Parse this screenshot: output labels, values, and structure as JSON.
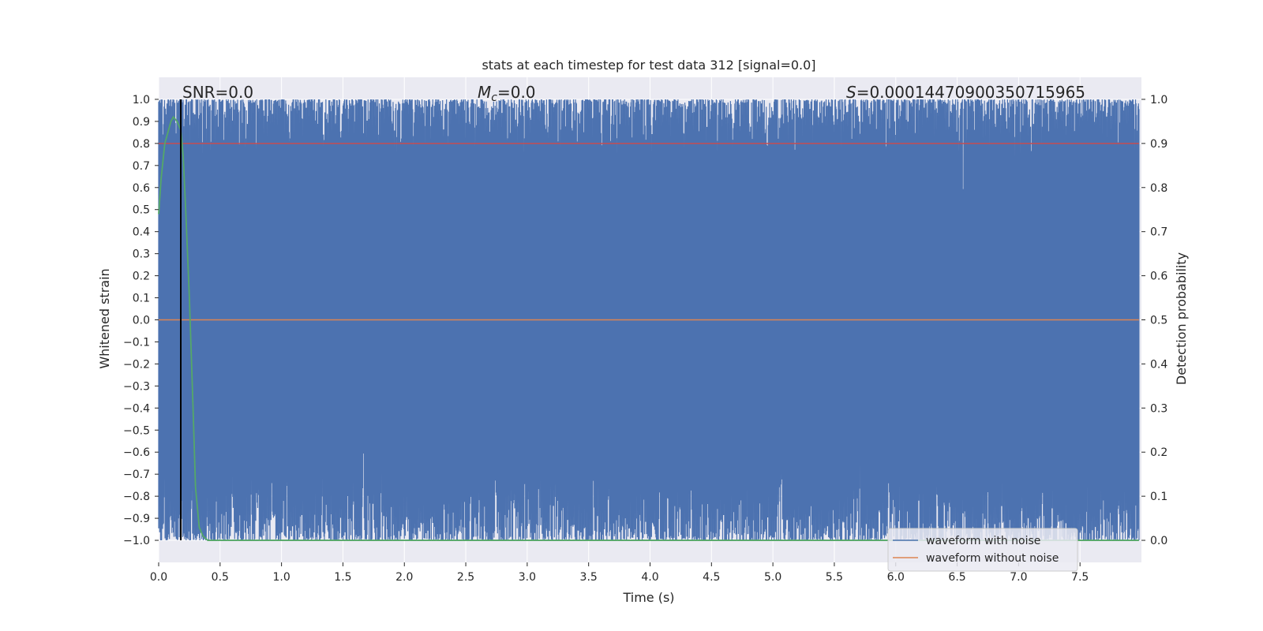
{
  "chart_data": {
    "type": "line",
    "title": "stats at each timestep for test data 312 [signal=0.0]",
    "xlabel": "Time (s)",
    "ylabel_left": "Whitened strain",
    "ylabel_right": "Detection probability",
    "xlim": [
      0.0,
      8.0
    ],
    "ylim_left": [
      -1.1,
      1.1
    ],
    "ylim_right": [
      -0.05,
      1.05
    ],
    "x_ticks": [
      "0.0",
      "0.5",
      "1.0",
      "1.5",
      "2.0",
      "2.5",
      "3.0",
      "3.5",
      "4.0",
      "4.5",
      "5.0",
      "5.5",
      "6.0",
      "6.5",
      "7.0",
      "7.5"
    ],
    "y_left_ticks": [
      "1.0",
      "0.9",
      "0.8",
      "0.7",
      "0.6",
      "0.5",
      "0.4",
      "0.3",
      "0.2",
      "0.1",
      "0.0",
      "−0.1",
      "−0.2",
      "−0.3",
      "−0.4",
      "−0.5",
      "−0.6",
      "−0.7",
      "−0.8",
      "−0.9",
      "−1.0"
    ],
    "y_right_ticks": [
      "1.0",
      "0.9",
      "0.8",
      "0.7",
      "0.6",
      "0.5",
      "0.4",
      "0.3",
      "0.2",
      "0.1",
      "0.0"
    ],
    "grid": true,
    "legend_position": "lower-right",
    "annotations": {
      "snr": "SNR=0.0",
      "mc_symbol": "M",
      "mc_sub": "c",
      "mc_value": "=0.0",
      "s_symbol": "S",
      "s_value": "=0.0001447090035071596​5"
    },
    "series": [
      {
        "name": "waveform with noise",
        "axis": "left",
        "color": "#4c72b0",
        "description_range": [
          -1.0,
          1.0
        ],
        "duration_s": 7.98
      },
      {
        "name": "waveform without noise",
        "axis": "left",
        "color": "#dd8452",
        "x": [
          0.0,
          7.98
        ],
        "y": [
          0.0,
          0.0
        ]
      }
    ],
    "detection_probability": {
      "axis": "right",
      "color": "#55a868",
      "x": [
        0.0,
        0.02,
        0.05,
        0.08,
        0.1,
        0.12,
        0.15,
        0.18,
        0.2,
        0.22,
        0.25,
        0.28,
        0.3,
        0.33,
        0.36,
        0.4,
        7.98
      ],
      "y": [
        0.74,
        0.82,
        0.9,
        0.93,
        0.95,
        0.96,
        0.95,
        0.93,
        0.87,
        0.75,
        0.55,
        0.3,
        0.12,
        0.03,
        0.01,
        0.0,
        0.0
      ]
    },
    "threshold": {
      "axis": "right",
      "color": "#c44e52",
      "value": 0.9
    },
    "marker_line": {
      "color": "#000000",
      "x": 0.18
    }
  }
}
